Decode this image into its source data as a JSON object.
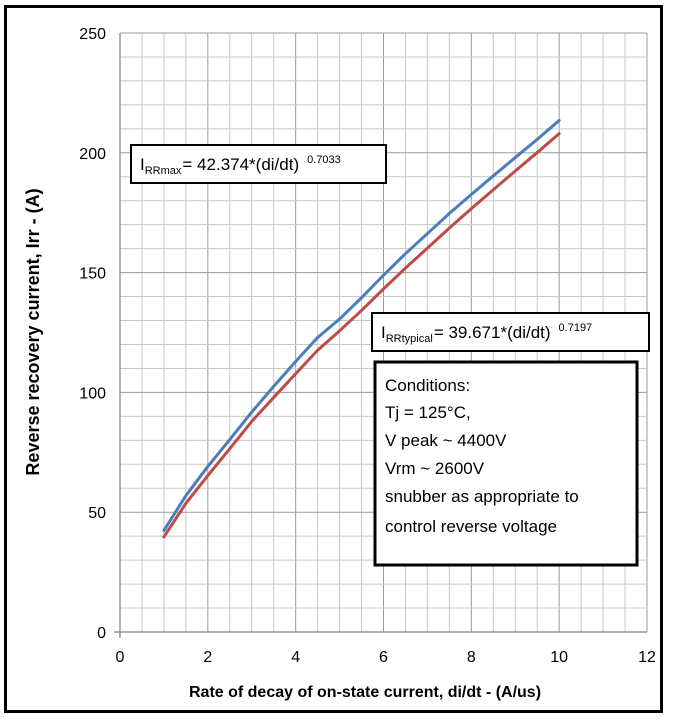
{
  "chart_data": {
    "type": "line",
    "title": "",
    "xlabel": "Rate of decay of on-state current, di/dt - (A/us)",
    "ylabel": "Reverse recovery current, Irr - (A)",
    "xlim": [
      0,
      12
    ],
    "ylim": [
      0,
      250
    ],
    "x_ticks": [
      0,
      2,
      4,
      6,
      8,
      10,
      12
    ],
    "y_ticks": [
      0,
      50,
      100,
      150,
      200,
      250
    ],
    "x_minor_step": 0.5,
    "y_minor_step": 10,
    "grid": true,
    "legend": "none",
    "colors": {
      "IRRmax": "#4a7ebb",
      "IRRtypical": "#be4b48"
    },
    "series": [
      {
        "id": "IRRmax",
        "coef": 42.374,
        "exp": 0.7033,
        "x": [
          1,
          1.5,
          2,
          2.5,
          3,
          3.5,
          4,
          4.5,
          5,
          5.5,
          6,
          6.5,
          7,
          7.5,
          8,
          8.5,
          9,
          9.5,
          10
        ],
        "values": [
          42.4,
          56.9,
          69.1,
          80.3,
          91.8,
          102.5,
          112.9,
          122.9,
          130.6,
          139.5,
          148.9,
          157.9,
          166.3,
          174.7,
          182.6,
          190.4,
          198.0,
          205.6,
          213.5
        ]
      },
      {
        "id": "IRRtypical",
        "coef": 39.671,
        "exp": 0.7197,
        "x": [
          1,
          1.5,
          2,
          2.5,
          3,
          3.5,
          4,
          4.5,
          5,
          5.5,
          6,
          6.5,
          7,
          7.5,
          8,
          8.5,
          9,
          9.5,
          10
        ],
        "values": [
          39.7,
          53.7,
          65.3,
          76.5,
          87.9,
          97.9,
          107.8,
          117.6,
          125.7,
          134.2,
          143.2,
          151.9,
          160.2,
          168.6,
          176.7,
          184.6,
          192.4,
          200.1,
          208.0
        ]
      }
    ],
    "annotations": [
      {
        "id": "irrmax-formula",
        "prefix": "I",
        "subscript": "RRmax",
        "equation": "= 42.374*(di/dt)",
        "exponent": "0.7033"
      },
      {
        "id": "irrtypical-formula",
        "prefix": "I",
        "subscript": "RRtypical",
        "equation": "= 39.671*(di/dt)",
        "exponent": "0.7197"
      }
    ],
    "conditions": [
      "Conditions:",
      "Tj = 125°C,",
      "V peak ~ 4400V",
      "Vrm ~ 2600V",
      "snubber as appropriate to",
      "control reverse voltage"
    ]
  }
}
